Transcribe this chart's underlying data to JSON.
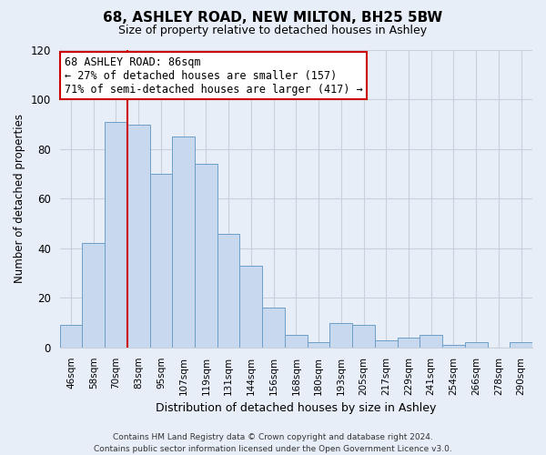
{
  "title": "68, ASHLEY ROAD, NEW MILTON, BH25 5BW",
  "subtitle": "Size of property relative to detached houses in Ashley",
  "xlabel": "Distribution of detached houses by size in Ashley",
  "ylabel": "Number of detached properties",
  "bin_labels": [
    "46sqm",
    "58sqm",
    "70sqm",
    "83sqm",
    "95sqm",
    "107sqm",
    "119sqm",
    "131sqm",
    "144sqm",
    "156sqm",
    "168sqm",
    "180sqm",
    "193sqm",
    "205sqm",
    "217sqm",
    "229sqm",
    "241sqm",
    "254sqm",
    "266sqm",
    "278sqm",
    "290sqm"
  ],
  "bar_heights": [
    9,
    42,
    91,
    90,
    70,
    85,
    74,
    46,
    33,
    16,
    5,
    2,
    10,
    9,
    3,
    4,
    5,
    1,
    2,
    0,
    2
  ],
  "bar_color": "#c8d8ee",
  "bar_edge_color": "#6b9ec8",
  "vline_color": "#cc0000",
  "annotation_line1": "68 ASHLEY ROAD: 86sqm",
  "annotation_line2": "← 27% of detached houses are smaller (157)",
  "annotation_line3": "71% of semi-detached houses are larger (417) →",
  "annotation_box_color": "#ffffff",
  "annotation_box_edge": "#cc0000",
  "ylim": [
    0,
    120
  ],
  "yticks": [
    0,
    20,
    40,
    60,
    80,
    100,
    120
  ],
  "footer": "Contains HM Land Registry data © Crown copyright and database right 2024.\nContains public sector information licensed under the Open Government Licence v3.0.",
  "bg_color": "#e8eef8",
  "plot_bg_color": "#e8eef8",
  "grid_color": "#c8d0dc"
}
